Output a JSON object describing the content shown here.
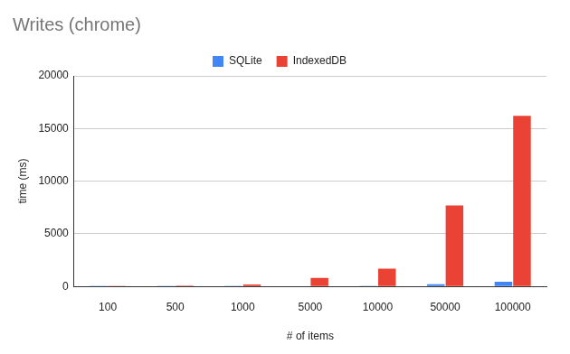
{
  "chart_data": {
    "type": "bar",
    "title": "Writes (chrome)",
    "x_label": "# of items",
    "y_label": "time (ms)",
    "categories": [
      "100",
      "500",
      "1000",
      "5000",
      "10000",
      "50000",
      "100000"
    ],
    "series": [
      {
        "name": "SQLite",
        "color": "#4285f4",
        "values": [
          2,
          5,
          10,
          30,
          60,
          200,
          450
        ]
      },
      {
        "name": "IndexedDB",
        "color": "#ea4335",
        "values": [
          20,
          90,
          180,
          800,
          1700,
          7700,
          16200
        ]
      }
    ],
    "ylim": [
      0,
      20000
    ],
    "yticks": [
      0,
      5000,
      10000,
      15000,
      20000
    ],
    "grid": true,
    "legend": "top"
  }
}
